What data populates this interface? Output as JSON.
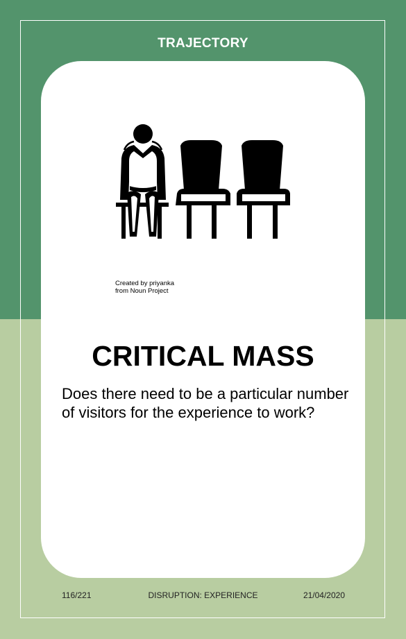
{
  "card": {
    "category": "TRAJECTORY",
    "title": "CRITICAL MASS",
    "question": "Does there need to be a particular number of visitors for the experience to work?",
    "credit_line1": "Created by priyanka",
    "credit_line2": "from Noun Project",
    "illustration_icon": "person-sitting-next-to-empty-chairs-icon"
  },
  "footer": {
    "page": "116/221",
    "section": "DISRUPTION: EXPERIENCE",
    "date": "21/04/2020"
  },
  "colors": {
    "top_green": "#53946c",
    "bottom_green": "#b8cda1",
    "card_white": "#ffffff"
  }
}
